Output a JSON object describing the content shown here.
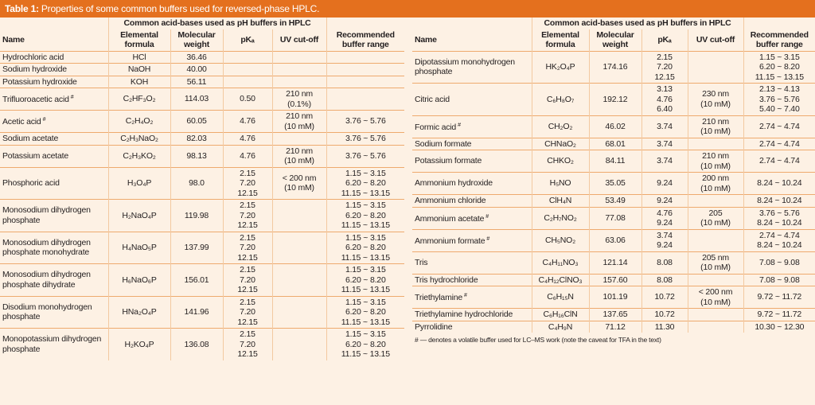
{
  "header": {
    "label": "Table 1:",
    "title": "Properties of some common buffers used for reversed-phase HPLC."
  },
  "tables": [
    {
      "caption": "Common acid-bases used as pH buffers in HPLC",
      "columns": {
        "name": [
          "Name"
        ],
        "formula": [
          "Elemental",
          "formula"
        ],
        "weight": [
          "Molecular",
          "weight"
        ],
        "pka": [
          "pKₐ"
        ],
        "uv": [
          "UV cut-off"
        ],
        "range": [
          "Recommended",
          "buffer range"
        ]
      },
      "rows": [
        {
          "name": "Hydrochloric acid",
          "formula": "HCl",
          "weight": "36.46"
        },
        {
          "name": "Sodium hydroxide",
          "formula": "NaOH",
          "weight": "40.00"
        },
        {
          "name": "Potassium hydroxide",
          "formula": "KOH",
          "weight": "56.11"
        },
        {
          "name": "Trifluoroacetic acid",
          "note": "#",
          "formula": "C₂HF₃O₂",
          "weight": "114.03",
          "pka": "0.50",
          "uv": [
            "210 nm",
            "(0.1%)"
          ]
        },
        {
          "name": "Acetic acid",
          "note": "#",
          "formula": "C₂H₄O₂",
          "weight": "60.05",
          "pka": "4.76",
          "uv": [
            "210 nm",
            "(10 mM)"
          ],
          "range": "3.76 ~ 5.76"
        },
        {
          "name": "Sodium acetate",
          "formula": "C₂H₃NaO₂",
          "weight": "82.03",
          "pka": "4.76",
          "range": "3.76 ~ 5.76"
        },
        {
          "name": "Potassium acetate",
          "formula": "C₂H₃KO₂",
          "weight": "98.13",
          "pka": "4.76",
          "uv": [
            "210 nm",
            "(10 mM)"
          ],
          "range": "3.76 ~ 5.76"
        },
        {
          "name": "Phosphoric acid",
          "formula": "H₃O₄P",
          "weight": "98.0",
          "pka": [
            "2.15",
            "7.20",
            "12.15"
          ],
          "uv": [
            "< 200 nm",
            "(10 mM)"
          ],
          "range": [
            "1.15 ~ 3.15",
            "6.20 ~ 8.20",
            "11.15 ~ 13.15"
          ]
        },
        {
          "name": "Monosodium dihydrogen phosphate",
          "formula": "H₂NaO₄P",
          "weight": "119.98",
          "pka": [
            "2.15",
            "7.20",
            "12.15"
          ],
          "range": [
            "1.15 ~ 3.15",
            "6.20 ~ 8.20",
            "11.15 ~ 13.15"
          ]
        },
        {
          "name": "Monosodium dihydrogen phosphate monohydrate",
          "formula": "H₄NaO₅P",
          "weight": "137.99",
          "pka": [
            "2.15",
            "7.20",
            "12.15"
          ],
          "range": [
            "1.15 ~ 3.15",
            "6.20 ~ 8.20",
            "11.15 ~ 13.15"
          ]
        },
        {
          "name": "Monosodium dihydrogen phosphate dihydrate",
          "formula": "H₆NaO₆P",
          "weight": "156.01",
          "pka": [
            "2.15",
            "7.20",
            "12.15"
          ],
          "range": [
            "1.15 ~ 3.15",
            "6.20 ~ 8.20",
            "11.15 ~ 13.15"
          ]
        },
        {
          "name": "Disodium monohydrogen phosphate",
          "formula": "HNa₂O₄P",
          "weight": "141.96",
          "pka": [
            "2.15",
            "7.20",
            "12.15"
          ],
          "range": [
            "1.15 ~ 3.15",
            "6.20 ~ 8.20",
            "11.15 ~ 13.15"
          ]
        },
        {
          "name": "Monopotassium dihydrogen phosphate",
          "formula": "H₂KO₄P",
          "weight": "136.08",
          "pka": [
            "2.15",
            "7.20",
            "12.15"
          ],
          "range": [
            "1.15 ~ 3.15",
            "6.20 ~ 8.20",
            "11.15 ~ 13.15"
          ]
        }
      ]
    },
    {
      "caption": "Common acid-bases used as pH buffers in HPLC",
      "columns": {
        "name": [
          "Name"
        ],
        "formula": [
          "Elemental",
          "formula"
        ],
        "weight": [
          "Molecular",
          "weight"
        ],
        "pka": [
          "pKₐ"
        ],
        "uv": [
          "UV cut-off"
        ],
        "range": [
          "Recommended",
          "buffer range"
        ]
      },
      "rows": [
        {
          "name": "Dipotassium monohydrogen phosphate",
          "formula": "HK₂O₄P",
          "weight": "174.16",
          "pka": [
            "2.15",
            "7.20",
            "12.15"
          ],
          "range": [
            "1.15 ~ 3.15",
            "6.20 ~ 8.20",
            "11.15 ~ 13.15"
          ]
        },
        {
          "name": "Citric acid",
          "formula": "C₆H₈O₇",
          "weight": "192.12",
          "pka": [
            "3.13",
            "4.76",
            "6.40"
          ],
          "uv": [
            "230 nm",
            "(10 mM)"
          ],
          "range": [
            "2.13 ~ 4.13",
            "3.76 ~ 5.76",
            "5.40 ~ 7.40"
          ]
        },
        {
          "name": "Formic acid",
          "note": "#",
          "formula": "CH₂O₂",
          "weight": "46.02",
          "pka": "3.74",
          "uv": [
            "210 nm",
            "(10 mM)"
          ],
          "range": "2.74 ~ 4.74"
        },
        {
          "name": "Sodium formate",
          "formula": "CHNaO₂",
          "weight": "68.01",
          "pka": "3.74",
          "range": "2.74 ~ 4.74"
        },
        {
          "name": "Potassium formate",
          "formula": "CHKO₂",
          "weight": "84.11",
          "pka": "3.74",
          "uv": [
            "210 nm",
            "(10 mM)"
          ],
          "range": "2.74 ~ 4.74"
        },
        {
          "name": "Ammonium hydroxide",
          "formula": "H₅NO",
          "weight": "35.05",
          "pka": "9.24",
          "uv": [
            "200 nm",
            "(10 mM)"
          ],
          "range": "8.24 ~ 10.24"
        },
        {
          "name": "Ammonium chloride",
          "formula": "ClH₄N",
          "weight": "53.49",
          "pka": "9.24",
          "range": "8.24 ~ 10.24"
        },
        {
          "name": "Ammonium acetate",
          "note": "#",
          "formula": "C₂H₇NO₂",
          "weight": "77.08",
          "pka": [
            "4.76",
            "9.24"
          ],
          "uv": [
            "205",
            "(10 mM)"
          ],
          "range": [
            "3.76 ~ 5.76",
            "8.24 ~ 10.24"
          ]
        },
        {
          "name": "Ammonium formate",
          "note": "#",
          "formula": "CH₅NO₂",
          "weight": "63.06",
          "pka": [
            "3.74",
            "9.24"
          ],
          "range": [
            "2.74 ~ 4.74",
            "8.24 ~ 10.24"
          ]
        },
        {
          "name": "Tris",
          "formula": "C₄H₁₁NO₃",
          "weight": "121.14",
          "pka": "8.08",
          "uv": [
            "205 nm",
            "(10 mM)"
          ],
          "range": "7.08 ~ 9.08"
        },
        {
          "name": "Tris hydrochloride",
          "formula": "C₄H₁₂ClNO₃",
          "weight": "157.60",
          "pka": "8.08",
          "range": "7.08 ~ 9.08"
        },
        {
          "name": "Triethylamine",
          "note": "#",
          "formula": "C₆H₁₅N",
          "weight": "101.19",
          "pka": "10.72",
          "uv": [
            "< 200 nm",
            "(10 mM)"
          ],
          "range": "9.72 ~ 11.72"
        },
        {
          "name": "Triethylamine hydrochloride",
          "formula": "C₆H₁₆ClN",
          "weight": "137.65",
          "pka": "10.72",
          "range": "9.72 ~ 11.72"
        },
        {
          "name": "Pyrrolidine",
          "formula": "C₄H₉N",
          "weight": "71.12",
          "pka": "11.30",
          "range": "10.30 ~ 12.30"
        }
      ],
      "footnote": "# — denotes a volatile buffer used for LC–MS work (note the caveat for TFA in the text)"
    }
  ]
}
